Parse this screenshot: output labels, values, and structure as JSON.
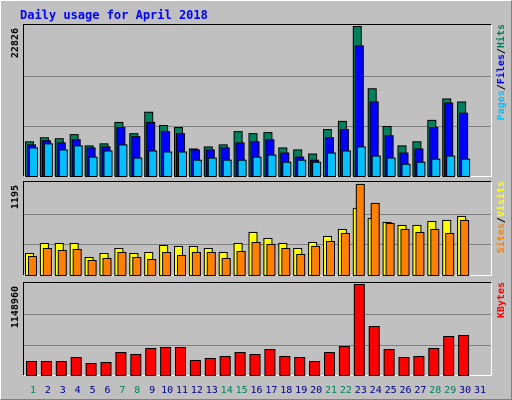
{
  "title": "Daily usage for April 2018",
  "legend_separator": "/",
  "chart_data": [
    {
      "type": "bar",
      "categories": [
        1,
        2,
        3,
        4,
        5,
        6,
        7,
        8,
        9,
        10,
        11,
        12,
        13,
        14,
        15,
        16,
        17,
        18,
        19,
        20,
        21,
        22,
        23,
        24,
        25,
        26,
        27,
        28,
        29,
        30,
        31
      ],
      "label_colors": [
        "#00805C",
        "#00008B",
        "#00008B",
        "#00008B",
        "#00008B",
        "#00008B",
        "#00805C",
        "#00805C",
        "#00008B",
        "#00008B",
        "#00008B",
        "#00008B",
        "#00008B",
        "#00805C",
        "#00805C",
        "#00008B",
        "#00008B",
        "#00008B",
        "#00008B",
        "#00008B",
        "#00805C",
        "#00805C",
        "#00008B",
        "#00008B",
        "#00008B",
        "#00008B",
        "#00008B",
        "#00805C",
        "#00805C",
        "#00008B",
        "#00008B"
      ],
      "ylim": [
        0,
        22826
      ],
      "yticks": [
        22826
      ],
      "legend_order": [
        2,
        1,
        0
      ],
      "series": [
        {
          "name": "Hits",
          "color": "#00805C",
          "values": [
            5280,
            5900,
            5750,
            6370,
            4660,
            4970,
            8230,
            6520,
            9780,
            7760,
            7450,
            4190,
            4500,
            4810,
            6830,
            6520,
            6680,
            4350,
            4040,
            3420,
            7140,
            8390,
            22826,
            13350,
            7610,
            4660,
            5280,
            8540,
            11800,
            11340,
            null
          ]
        },
        {
          "name": "Files",
          "color": "#0000FF",
          "values": [
            4810,
            5440,
            5120,
            5590,
            4350,
            4500,
            7450,
            6060,
            8230,
            6830,
            6520,
            4040,
            4040,
            4350,
            5120,
            5280,
            5590,
            3570,
            2950,
            2480,
            5900,
            7140,
            19880,
            11340,
            6210,
            3570,
            4190,
            7450,
            11180,
            9630,
            null
          ]
        },
        {
          "name": "Pages",
          "color": "#00C0FF",
          "values": [
            4350,
            4970,
            4040,
            4660,
            2950,
            3880,
            4810,
            2800,
            3880,
            3730,
            3730,
            2480,
            2800,
            2480,
            2480,
            2950,
            3260,
            2170,
            2480,
            2170,
            3570,
            3880,
            4500,
            3110,
            2800,
            1860,
            2170,
            2640,
            3110,
            2640,
            null
          ]
        }
      ]
    },
    {
      "type": "bar",
      "ylim": [
        0,
        1195
      ],
      "yticks": [
        1195
      ],
      "legend_order": [
        1,
        0
      ],
      "series": [
        {
          "name": "Visits",
          "color": "#FFFF00",
          "values": [
            286,
            416,
            416,
            416,
            234,
            286,
            351,
            286,
            299,
            390,
            377,
            377,
            351,
            299,
            416,
            559,
            481,
            416,
            351,
            429,
            507,
            598,
            871,
            741,
            689,
            650,
            650,
            702,
            715,
            767,
            null
          ]
        },
        {
          "name": "Sites",
          "color": "#FF8000",
          "values": [
            247,
            351,
            325,
            338,
            195,
            221,
            299,
            234,
            208,
            299,
            260,
            299,
            299,
            221,
            312,
            429,
            403,
            351,
            273,
            377,
            442,
            546,
            1183,
            936,
            676,
            598,
            559,
            598,
            546,
            715,
            null
          ]
        }
      ]
    },
    {
      "type": "bar",
      "ylim": [
        0,
        1148960
      ],
      "yticks": [
        1148960
      ],
      "legend_order": [
        0
      ],
      "series": [
        {
          "name": "KBytes",
          "color": "#FF0000",
          "values": [
            176760,
            176760,
            176760,
            227270,
            151510,
            164140,
            290400,
            265150,
            340900,
            353530,
            353530,
            189390,
            214640,
            239890,
            290400,
            265150,
            328280,
            239890,
            227270,
            176760,
            290400,
            366150,
            1148960,
            618670,
            328280,
            227270,
            239890,
            340900,
            492410,
            505040,
            null
          ]
        }
      ]
    }
  ]
}
